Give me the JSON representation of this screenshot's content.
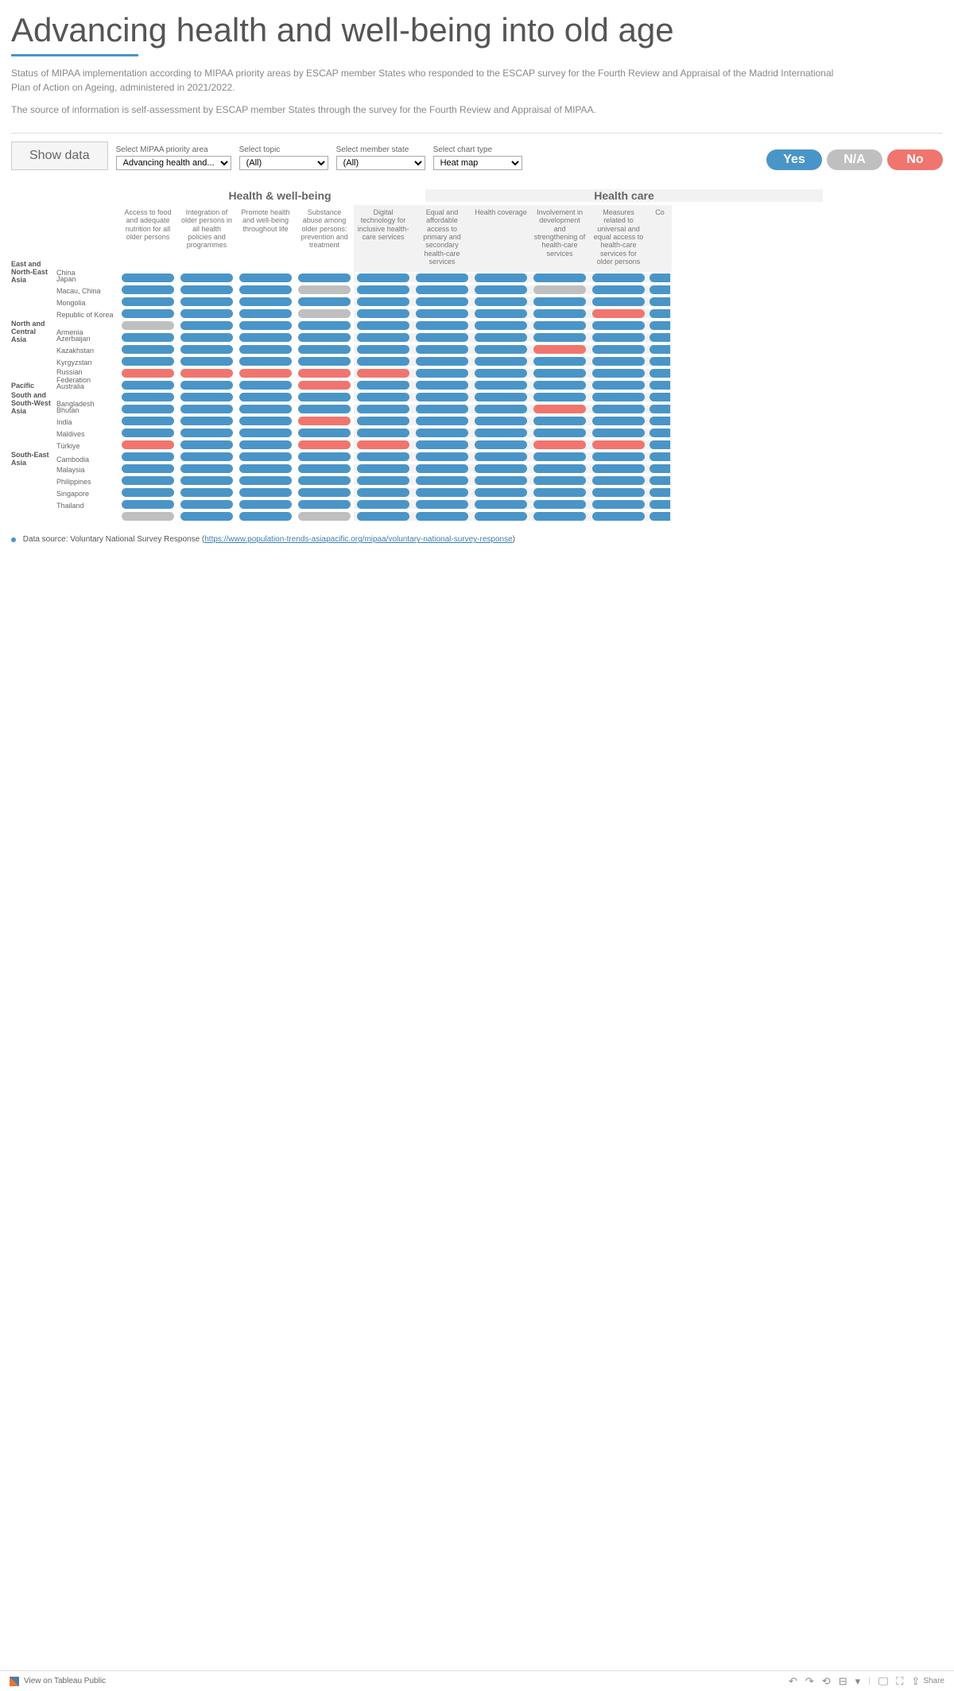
{
  "title": "Advancing health and well-being into old age",
  "description1": "Status of MIPAA implementation according to MIPAA priority areas by ESCAP member States who responded to the ESCAP survey for the Fourth Review and Appraisal of the Madrid International Plan of Action on Ageing, administered in 2021/2022.",
  "description2": "The source of information is self-assessment by ESCAP member States through the survey for the Fourth Review and Appraisal of MIPAA.",
  "show_data_label": "Show data",
  "filters": {
    "priority": {
      "label": "Select MIPAA priority area",
      "value": "Advancing health and..."
    },
    "topic": {
      "label": "Select topic",
      "value": "(All)"
    },
    "state": {
      "label": "Select member state",
      "value": "(All)"
    },
    "chart": {
      "label": "Select chart type",
      "value": "Heat map"
    }
  },
  "legend": {
    "yes": "Yes",
    "na": "N/A",
    "no": "No"
  },
  "colors": {
    "yes": "#4a95c7",
    "na": "#bfbfbf",
    "no": "#f0756f",
    "accent": "#4a95c7",
    "bg_hc": "#f2f2f2"
  },
  "group_headers": [
    "Health & well-being",
    "Health care"
  ],
  "columns": [
    {
      "label": "Access to food and adequate nutrition for all older persons",
      "group": 0
    },
    {
      "label": "Integration of older persons in all health policies and programmes",
      "group": 0
    },
    {
      "label": "Promote health and well-being throughout life",
      "group": 0
    },
    {
      "label": "Substance abuse among older persons: prevention and treatment",
      "group": 0
    },
    {
      "label": "Digital technology for inclusive health-care services",
      "group": 1
    },
    {
      "label": "Equal and affordable access to primary and secondary health-care services",
      "group": 1
    },
    {
      "label": "Health coverage",
      "group": 1
    },
    {
      "label": "Involvement in development and strengthening of health-care services",
      "group": 1
    },
    {
      "label": "Measures related to universal and equal access to health-care services for older persons",
      "group": 1
    },
    {
      "label": "Co",
      "group": 1,
      "truncated": true
    }
  ],
  "regions": [
    {
      "name": "East and North-East Asia",
      "countries": [
        {
          "name": "China",
          "values": [
            "yes",
            "yes",
            "yes",
            "yes",
            "yes",
            "yes",
            "yes",
            "yes",
            "yes",
            "yes"
          ]
        },
        {
          "name": "Japan",
          "values": [
            "yes",
            "yes",
            "yes",
            "na",
            "yes",
            "yes",
            "yes",
            "na",
            "yes",
            "yes"
          ]
        },
        {
          "name": "Macau, China",
          "values": [
            "yes",
            "yes",
            "yes",
            "yes",
            "yes",
            "yes",
            "yes",
            "yes",
            "yes",
            "yes"
          ]
        },
        {
          "name": "Mongolia",
          "values": [
            "yes",
            "yes",
            "yes",
            "na",
            "yes",
            "yes",
            "yes",
            "yes",
            "no",
            "yes"
          ]
        },
        {
          "name": "Republic of Korea",
          "values": [
            "na",
            "yes",
            "yes",
            "yes",
            "yes",
            "yes",
            "yes",
            "yes",
            "yes",
            "yes"
          ]
        }
      ]
    },
    {
      "name": "North and Central Asia",
      "countries": [
        {
          "name": "Armenia",
          "values": [
            "yes",
            "yes",
            "yes",
            "yes",
            "yes",
            "yes",
            "yes",
            "yes",
            "yes",
            "yes"
          ]
        },
        {
          "name": "Azerbaijan",
          "values": [
            "yes",
            "yes",
            "yes",
            "yes",
            "yes",
            "yes",
            "yes",
            "no",
            "yes",
            "yes"
          ]
        },
        {
          "name": "Kazakhstan",
          "values": [
            "yes",
            "yes",
            "yes",
            "yes",
            "yes",
            "yes",
            "yes",
            "yes",
            "yes",
            "yes"
          ]
        },
        {
          "name": "Kyrgyzstan",
          "values": [
            "no",
            "no",
            "no",
            "no",
            "no",
            "yes",
            "yes",
            "yes",
            "yes",
            "yes"
          ]
        },
        {
          "name": "Russian Federation",
          "values": [
            "yes",
            "yes",
            "yes",
            "no",
            "yes",
            "yes",
            "yes",
            "yes",
            "yes",
            "yes"
          ]
        }
      ]
    },
    {
      "name": "Pacific",
      "countries": [
        {
          "name": "Australia",
          "values": [
            "yes",
            "yes",
            "yes",
            "yes",
            "yes",
            "yes",
            "yes",
            "yes",
            "yes",
            "yes"
          ]
        }
      ]
    },
    {
      "name": "South and South-West Asia",
      "countries": [
        {
          "name": "Bangladesh",
          "values": [
            "yes",
            "yes",
            "yes",
            "yes",
            "yes",
            "yes",
            "yes",
            "no",
            "yes",
            "yes"
          ]
        },
        {
          "name": "Bhutan",
          "values": [
            "yes",
            "yes",
            "yes",
            "no",
            "yes",
            "yes",
            "yes",
            "yes",
            "yes",
            "yes"
          ]
        },
        {
          "name": "India",
          "values": [
            "yes",
            "yes",
            "yes",
            "yes",
            "yes",
            "yes",
            "yes",
            "yes",
            "yes",
            "yes"
          ]
        },
        {
          "name": "Maldives",
          "values": [
            "no",
            "yes",
            "yes",
            "no",
            "no",
            "yes",
            "yes",
            "no",
            "no",
            "yes"
          ]
        },
        {
          "name": "Türkiye",
          "values": [
            "yes",
            "yes",
            "yes",
            "yes",
            "yes",
            "yes",
            "yes",
            "yes",
            "yes",
            "yes"
          ]
        }
      ]
    },
    {
      "name": "South-East Asia",
      "countries": [
        {
          "name": "Cambodia",
          "values": [
            "yes",
            "yes",
            "yes",
            "yes",
            "yes",
            "yes",
            "yes",
            "yes",
            "yes",
            "yes"
          ]
        },
        {
          "name": "Malaysia",
          "values": [
            "yes",
            "yes",
            "yes",
            "yes",
            "yes",
            "yes",
            "yes",
            "yes",
            "yes",
            "yes"
          ]
        },
        {
          "name": "Philippines",
          "values": [
            "yes",
            "yes",
            "yes",
            "yes",
            "yes",
            "yes",
            "yes",
            "yes",
            "yes",
            "yes"
          ]
        },
        {
          "name": "Singapore",
          "values": [
            "yes",
            "yes",
            "yes",
            "yes",
            "yes",
            "yes",
            "yes",
            "yes",
            "yes",
            "yes"
          ]
        },
        {
          "name": "Thailand",
          "values": [
            "na",
            "yes",
            "yes",
            "na",
            "yes",
            "yes",
            "yes",
            "yes",
            "yes",
            "yes"
          ]
        }
      ]
    }
  ],
  "source_prefix": "Data source: Voluntary National Survey Response (",
  "source_link_text": "https://www.population-trends-asiapacific.org/mipaa/voluntary-national-survey-response",
  "source_suffix": ")",
  "footer_view": "View on Tableau Public",
  "footer_share": "Share"
}
